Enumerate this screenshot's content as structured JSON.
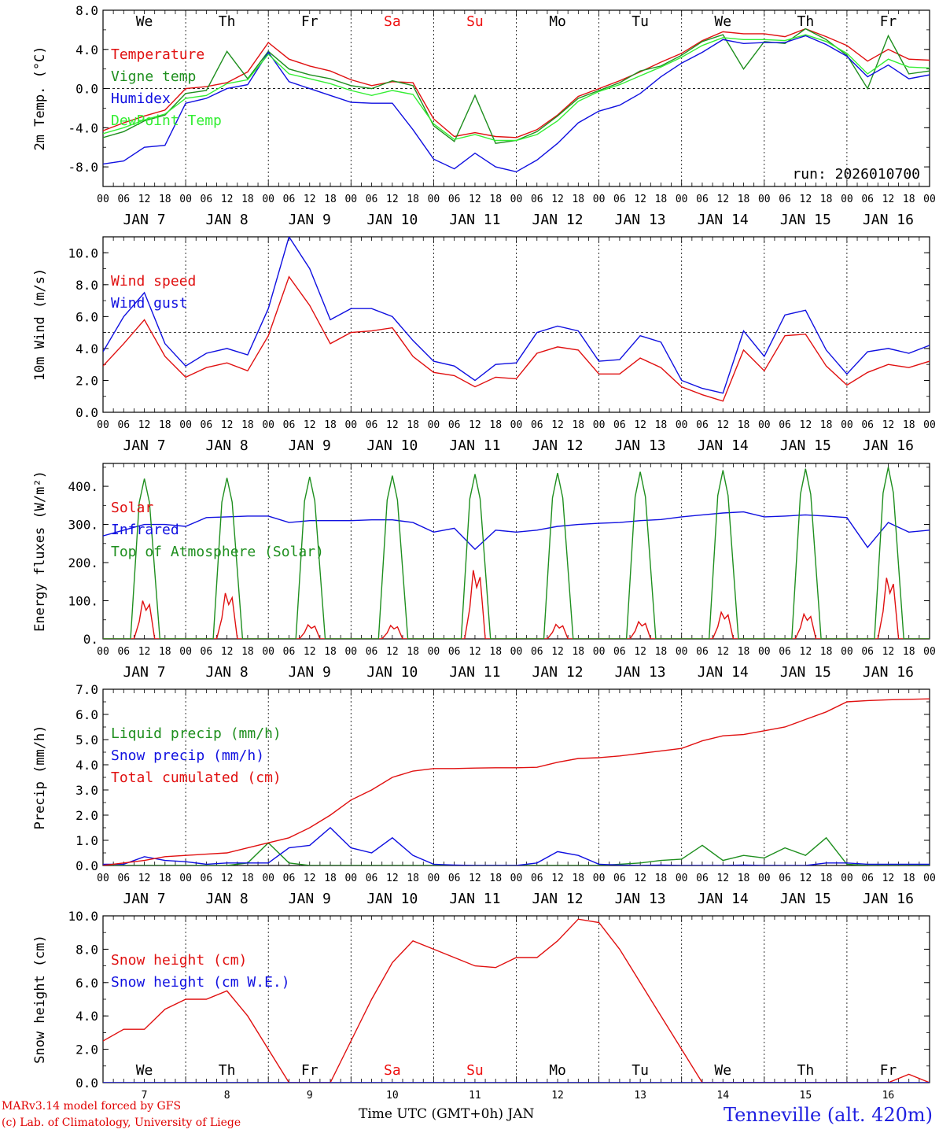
{
  "chart_data": [
    {
      "type": "line",
      "ylabel": "2m Temp. (°C)",
      "ylim": [
        -10,
        8
      ],
      "yticks": [
        -8,
        -4,
        0,
        4,
        8
      ],
      "ytick_labels": [
        "-8.0",
        "-4.0",
        "0.0",
        "4.0",
        "8.0"
      ],
      "reference_line": 0,
      "day_labels": [
        "We",
        "Th",
        "Fr",
        "Sa",
        "Su",
        "Mo",
        "Tu",
        "We",
        "Th",
        "Fr"
      ],
      "weekend_days": [
        "Sa",
        "Su"
      ],
      "annotation": "run: 2026010700",
      "x_hours": [
        0,
        6,
        12,
        18,
        24,
        30,
        36,
        42,
        48,
        54,
        60,
        66,
        72,
        78,
        84,
        90,
        96,
        102,
        108,
        114,
        120,
        126,
        132,
        138,
        144,
        150,
        156,
        162,
        168,
        174,
        180,
        186,
        192,
        198,
        204,
        210,
        216,
        222,
        228,
        234,
        240
      ],
      "series": [
        {
          "name": "Temperature",
          "color": "#e01010",
          "values": [
            -4.3,
            -3.5,
            -2.8,
            -2.2,
            0.0,
            0.2,
            0.6,
            1.7,
            4.7,
            3.0,
            2.3,
            1.8,
            0.9,
            0.3,
            0.7,
            0.6,
            -3.1,
            -4.9,
            -4.5,
            -4.9,
            -5.0,
            -4.2,
            -2.7,
            -0.8,
            0.0,
            0.8,
            1.7,
            2.7,
            3.6,
            4.9,
            5.8,
            5.6,
            5.6,
            5.3,
            6.1,
            5.3,
            4.4,
            2.8,
            4.0,
            3.0,
            2.9
          ]
        },
        {
          "name": "Vigne temp",
          "color": "#1f8f1f",
          "values": [
            -5.0,
            -4.4,
            -3.3,
            -2.7,
            -0.5,
            -0.2,
            3.8,
            1.0,
            3.8,
            2.0,
            1.4,
            1.0,
            0.3,
            0.0,
            0.8,
            0.3,
            -3.8,
            -5.4,
            -0.7,
            -5.6,
            -5.3,
            -4.4,
            -2.8,
            -1.0,
            -0.2,
            0.6,
            1.8,
            2.3,
            3.4,
            4.8,
            5.5,
            2.0,
            4.8,
            4.6,
            6.1,
            5.0,
            3.4,
            0.0,
            5.4,
            1.5,
            1.8
          ]
        },
        {
          "name": "Humidex",
          "color": "#1010e0",
          "values": [
            -7.7,
            -7.4,
            -6.0,
            -5.8,
            -1.5,
            -1.0,
            0.0,
            0.4,
            3.7,
            0.7,
            0.0,
            -0.7,
            -1.4,
            -1.5,
            -1.5,
            -4.2,
            -7.2,
            -8.2,
            -6.6,
            -8.0,
            -8.5,
            -7.3,
            -5.6,
            -3.5,
            -2.3,
            -1.7,
            -0.5,
            1.2,
            2.6,
            3.7,
            5.0,
            4.6,
            4.7,
            4.7,
            5.4,
            4.5,
            3.3,
            1.2,
            2.4,
            1.0,
            1.4
          ]
        },
        {
          "name": "DewPoint Temp",
          "color": "#33ee33",
          "values": [
            -4.6,
            -4.0,
            -3.2,
            -2.6,
            -1.0,
            -0.7,
            0.5,
            0.9,
            3.5,
            1.5,
            1.0,
            0.5,
            -0.2,
            -0.7,
            -0.2,
            -0.6,
            -3.6,
            -5.2,
            -4.7,
            -5.3,
            -5.3,
            -4.7,
            -3.3,
            -1.3,
            -0.3,
            0.4,
            1.3,
            2.2,
            3.2,
            4.4,
            5.2,
            5.0,
            5.0,
            4.9,
            5.5,
            4.8,
            3.6,
            1.5,
            3.0,
            2.2,
            2.1
          ]
        }
      ]
    },
    {
      "type": "line",
      "ylabel": "10m Wind (m/s)",
      "ylim": [
        0,
        11
      ],
      "yticks": [
        0,
        2,
        4,
        6,
        8,
        10
      ],
      "ytick_labels": [
        "0.0",
        "2.0",
        "4.0",
        "6.0",
        "8.0",
        "10.0"
      ],
      "reference_line": 5,
      "x_hours": [
        0,
        6,
        12,
        18,
        24,
        30,
        36,
        42,
        48,
        54,
        60,
        66,
        72,
        78,
        84,
        90,
        96,
        102,
        108,
        114,
        120,
        126,
        132,
        138,
        144,
        150,
        156,
        162,
        168,
        174,
        180,
        186,
        192,
        198,
        204,
        210,
        216,
        222,
        228,
        234,
        240
      ],
      "series": [
        {
          "name": "Wind speed",
          "color": "#e01010",
          "values": [
            2.9,
            4.3,
            5.8,
            3.5,
            2.2,
            2.8,
            3.1,
            2.6,
            4.8,
            8.5,
            6.7,
            4.3,
            5.0,
            5.1,
            5.3,
            3.5,
            2.5,
            2.3,
            1.6,
            2.2,
            2.1,
            3.7,
            4.1,
            3.9,
            2.4,
            2.4,
            3.4,
            2.8,
            1.6,
            1.1,
            0.7,
            3.9,
            2.6,
            4.8,
            4.9,
            2.9,
            1.7,
            2.5,
            3.0,
            2.8,
            3.2
          ]
        },
        {
          "name": "Wind gust",
          "color": "#1010e0",
          "values": [
            3.8,
            6.0,
            7.5,
            4.3,
            2.9,
            3.7,
            4.0,
            3.6,
            6.5,
            11.0,
            9.0,
            5.8,
            6.5,
            6.5,
            6.0,
            4.5,
            3.2,
            2.9,
            2.0,
            3.0,
            3.1,
            5.0,
            5.4,
            5.1,
            3.2,
            3.3,
            4.8,
            4.4,
            2.0,
            1.5,
            1.2,
            5.1,
            3.5,
            6.1,
            6.4,
            3.9,
            2.4,
            3.8,
            4.0,
            3.7,
            4.2
          ]
        }
      ]
    },
    {
      "type": "line",
      "ylabel": "Energy fluxes (W/m²)",
      "ylim": [
        0,
        460
      ],
      "yticks": [
        0,
        100,
        200,
        300,
        400
      ],
      "ytick_labels": [
        "0.",
        "100.",
        "200.",
        "300.",
        "400."
      ],
      "solar_peaks_by_day": [
        100,
        120,
        37,
        35,
        180,
        38,
        45,
        70,
        65,
        160
      ],
      "toa_peaks_by_day": [
        420,
        422,
        425,
        428,
        432,
        435,
        438,
        442,
        446,
        450
      ],
      "series": [
        {
          "name": "Solar",
          "color": "#e01010",
          "shape": "daily-bell"
        },
        {
          "name": "Infrared",
          "color": "#1010e0",
          "x_hours": [
            0,
            6,
            12,
            18,
            24,
            30,
            36,
            42,
            48,
            54,
            60,
            66,
            72,
            78,
            84,
            90,
            96,
            102,
            108,
            114,
            120,
            126,
            132,
            138,
            144,
            150,
            156,
            162,
            168,
            174,
            180,
            186,
            192,
            198,
            204,
            210,
            216,
            222,
            228,
            234,
            240
          ],
          "values": [
            270,
            285,
            300,
            300,
            295,
            318,
            320,
            322,
            322,
            305,
            310,
            310,
            310,
            312,
            312,
            305,
            280,
            290,
            235,
            285,
            280,
            285,
            295,
            300,
            303,
            305,
            310,
            313,
            320,
            325,
            330,
            333,
            320,
            322,
            325,
            322,
            318,
            240,
            305,
            280,
            285
          ]
        },
        {
          "name": "Top of Atmosphere (Solar)",
          "color": "#1f8f1f",
          "shape": "daily-trapezoid"
        }
      ]
    },
    {
      "type": "line",
      "ylabel": "Precip (mm/h)",
      "ylim": [
        0,
        7
      ],
      "yticks": [
        0,
        1,
        2,
        3,
        4,
        5,
        6,
        7
      ],
      "ytick_labels": [
        "0.0",
        "1.0",
        "2.0",
        "3.0",
        "4.0",
        "5.0",
        "6.0",
        "7.0"
      ],
      "x_hours": [
        0,
        6,
        12,
        18,
        24,
        30,
        36,
        42,
        48,
        54,
        60,
        66,
        72,
        78,
        84,
        90,
        96,
        102,
        108,
        114,
        120,
        126,
        132,
        138,
        144,
        150,
        156,
        162,
        168,
        174,
        180,
        186,
        192,
        198,
        204,
        210,
        216,
        222,
        228,
        234,
        240
      ],
      "series": [
        {
          "name": "Liquid precip (mm/h)",
          "color": "#1f8f1f",
          "values": [
            0,
            0,
            0,
            0,
            0,
            0,
            0,
            0.1,
            0.9,
            0.1,
            0,
            0,
            0,
            0,
            0,
            0,
            0,
            0,
            0,
            0,
            0,
            0,
            0,
            0,
            0,
            0.05,
            0.1,
            0.2,
            0.25,
            0.8,
            0.2,
            0.4,
            0.3,
            0.7,
            0.4,
            1.1,
            0.05,
            0,
            0,
            0,
            0
          ]
        },
        {
          "name": "Snow precip (mm/h)",
          "color": "#1010e0",
          "values": [
            0.05,
            0.05,
            0.35,
            0.2,
            0.15,
            0.05,
            0.1,
            0.1,
            0.1,
            0.7,
            0.8,
            1.5,
            0.7,
            0.5,
            1.1,
            0.4,
            0.05,
            0.02,
            0,
            0,
            0,
            0.1,
            0.55,
            0.4,
            0.05,
            0.02,
            0,
            0.02,
            0,
            0,
            0,
            0.02,
            0,
            0,
            0,
            0.1,
            0.1,
            0.05,
            0.05,
            0.05,
            0.05
          ]
        },
        {
          "name": "Total cumulated (cm)",
          "color": "#e01010",
          "values": [
            0,
            0.1,
            0.2,
            0.35,
            0.4,
            0.45,
            0.5,
            0.7,
            0.9,
            1.1,
            1.5,
            2.0,
            2.6,
            3.0,
            3.5,
            3.75,
            3.85,
            3.85,
            3.87,
            3.88,
            3.88,
            3.9,
            4.1,
            4.25,
            4.28,
            4.35,
            4.45,
            4.55,
            4.65,
            4.95,
            5.15,
            5.2,
            5.35,
            5.5,
            5.8,
            6.1,
            6.5,
            6.55,
            6.58,
            6.6,
            6.62
          ]
        }
      ]
    },
    {
      "type": "line",
      "ylabel": "Snow height (cm)",
      "ylim": [
        0,
        10
      ],
      "yticks": [
        0,
        2,
        4,
        6,
        8,
        10
      ],
      "ytick_labels": [
        "0.0",
        "2.0",
        "4.0",
        "6.0",
        "8.0",
        "10.0"
      ],
      "day_labels": [
        "We",
        "Th",
        "Fr",
        "Sa",
        "Su",
        "Mo",
        "Tu",
        "We",
        "Th",
        "Fr"
      ],
      "weekend_days": [
        "Sa",
        "Su"
      ],
      "x_day_numbers": [
        "7",
        "8",
        "9",
        "10",
        "11",
        "12",
        "13",
        "14",
        "15",
        "16"
      ],
      "xlabel": "Time UTC (GMT+0h) JAN",
      "x_hours": [
        0,
        6,
        12,
        18,
        24,
        30,
        36,
        42,
        48,
        54,
        60,
        66,
        72,
        78,
        84,
        90,
        96,
        102,
        108,
        114,
        120,
        126,
        132,
        138,
        144,
        150,
        156,
        162,
        168,
        174,
        180,
        186,
        192,
        198,
        204,
        210,
        216,
        222,
        228,
        234,
        240
      ],
      "series": [
        {
          "name": "Snow height (cm)",
          "color": "#e01010",
          "values": [
            2.5,
            3.2,
            3.2,
            4.4,
            5.0,
            5.0,
            5.5,
            4.0,
            2.0,
            0,
            0,
            0,
            2.5,
            5.0,
            7.2,
            8.5,
            8.0,
            7.5,
            7.0,
            6.9,
            7.5,
            7.5,
            8.5,
            9.8,
            9.6,
            8.0,
            6.0,
            4.0,
            2.0,
            0,
            0,
            0,
            0,
            0,
            0,
            0,
            0,
            0,
            0,
            0.5,
            0
          ]
        },
        {
          "name": "Snow height (cm W.E.)",
          "color": "#1010e0",
          "values": [
            0,
            0,
            0,
            0,
            0,
            0,
            0,
            0,
            0,
            0,
            0,
            0,
            0,
            0,
            0,
            0,
            0,
            0,
            0,
            0,
            0,
            0,
            0,
            0,
            0,
            0,
            0,
            0,
            0,
            0,
            0,
            0,
            0,
            0,
            0,
            0,
            0,
            0,
            0,
            0,
            0
          ]
        }
      ]
    }
  ],
  "x_axis": {
    "hour_labels": [
      "00",
      "06",
      "12",
      "18"
    ],
    "final_label": "00",
    "date_labels": [
      "JAN  7",
      "JAN  8",
      "JAN  9",
      "JAN 10",
      "JAN 11",
      "JAN 12",
      "JAN 13",
      "JAN 14",
      "JAN 15",
      "JAN 16"
    ]
  },
  "footer": {
    "credit_line1": "MARv3.14 model forced by GFS",
    "credit_line2": "(c) Lab. of Climatology, University of Liege",
    "station": "Tenneville (alt. 420m)",
    "x_title": "Time UTC (GMT+0h) JAN"
  },
  "colors": {
    "weekend": "#ee1111",
    "axis": "#000000",
    "grid": "#000000"
  }
}
